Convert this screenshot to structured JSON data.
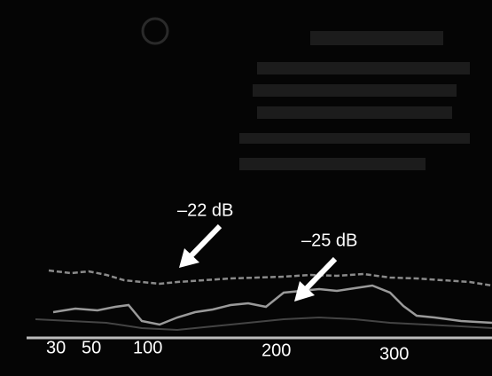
{
  "annotations": [
    "–22 dB",
    "–25 dB"
  ],
  "axis_labels": [
    "30",
    "50",
    "100",
    "200",
    "300"
  ]
}
